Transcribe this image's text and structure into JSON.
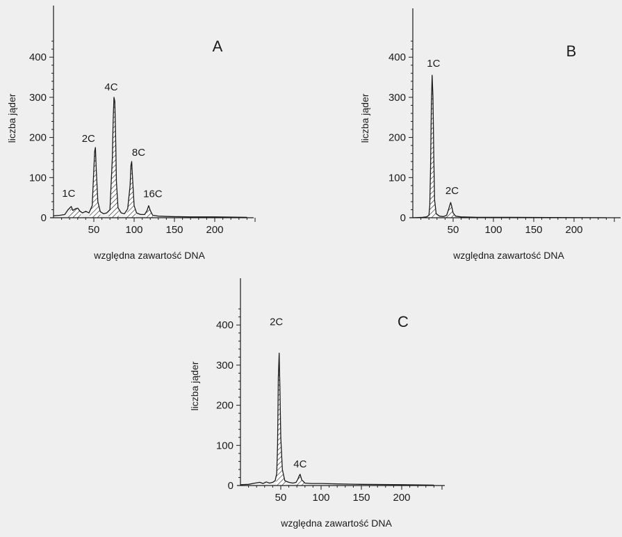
{
  "colors": {
    "background": "#efefef",
    "ink": "#1a1a1a",
    "hatch_fill": "#ffffff"
  },
  "chart_data": [
    {
      "type": "area",
      "panel_label": "A",
      "xlabel": "względna zawartość DNA",
      "ylabel": "liczba jąder",
      "xlim": [
        0,
        250
      ],
      "ylim": [
        0,
        450
      ],
      "x_ticks": [
        50,
        100,
        150,
        200
      ],
      "y_ticks": [
        0,
        100,
        200,
        300,
        400
      ],
      "grid": false,
      "histogram": [
        [
          0,
          5
        ],
        [
          8,
          6
        ],
        [
          14,
          8
        ],
        [
          18,
          20
        ],
        [
          22,
          28
        ],
        [
          24,
          18
        ],
        [
          27,
          22
        ],
        [
          30,
          24
        ],
        [
          33,
          16
        ],
        [
          36,
          12
        ],
        [
          40,
          16
        ],
        [
          44,
          12
        ],
        [
          48,
          30
        ],
        [
          50,
          120
        ],
        [
          51,
          165
        ],
        [
          52,
          175
        ],
        [
          53,
          120
        ],
        [
          55,
          40
        ],
        [
          58,
          15
        ],
        [
          62,
          10
        ],
        [
          66,
          12
        ],
        [
          70,
          20
        ],
        [
          73,
          150
        ],
        [
          74,
          240
        ],
        [
          75,
          300
        ],
        [
          76,
          290
        ],
        [
          77,
          210
        ],
        [
          78,
          90
        ],
        [
          80,
          25
        ],
        [
          84,
          12
        ],
        [
          88,
          10
        ],
        [
          92,
          22
        ],
        [
          95,
          80
        ],
        [
          96,
          130
        ],
        [
          97,
          140
        ],
        [
          98,
          100
        ],
        [
          100,
          30
        ],
        [
          103,
          12
        ],
        [
          108,
          8
        ],
        [
          113,
          8
        ],
        [
          116,
          18
        ],
        [
          118,
          30
        ],
        [
          120,
          18
        ],
        [
          123,
          6
        ],
        [
          130,
          4
        ],
        [
          145,
          3
        ],
        [
          170,
          2
        ],
        [
          200,
          2
        ],
        [
          240,
          1
        ]
      ],
      "shaded_peaks": [
        [
          44,
          58
        ],
        [
          68,
          81
        ],
        [
          91,
          102
        ],
        [
          114,
          123
        ],
        [
          18,
          34
        ]
      ],
      "peaks": [
        {
          "label": "1C",
          "x": 24,
          "y": 28
        },
        {
          "label": "2C",
          "x": 52,
          "y": 175
        },
        {
          "label": "4C",
          "x": 75,
          "y": 300
        },
        {
          "label": "8C",
          "x": 97,
          "y": 140
        },
        {
          "label": "16C",
          "x": 118,
          "y": 30
        }
      ]
    },
    {
      "type": "area",
      "panel_label": "B",
      "xlabel": "względna zawartość DNA",
      "ylabel": "liczba jąder",
      "xlim": [
        0,
        250
      ],
      "ylim": [
        0,
        450
      ],
      "x_ticks": [
        50,
        100,
        150,
        200
      ],
      "y_ticks": [
        0,
        100,
        200,
        300,
        400
      ],
      "grid": false,
      "histogram": [
        [
          0,
          0
        ],
        [
          12,
          1
        ],
        [
          17,
          2
        ],
        [
          20,
          6
        ],
        [
          21,
          30
        ],
        [
          22,
          120
        ],
        [
          23,
          280
        ],
        [
          24,
          355
        ],
        [
          25,
          300
        ],
        [
          26,
          150
        ],
        [
          27,
          45
        ],
        [
          29,
          10
        ],
        [
          33,
          4
        ],
        [
          38,
          3
        ],
        [
          42,
          6
        ],
        [
          44,
          18
        ],
        [
          46,
          32
        ],
        [
          47,
          38
        ],
        [
          48,
          30
        ],
        [
          50,
          12
        ],
        [
          53,
          4
        ],
        [
          60,
          2
        ],
        [
          80,
          1
        ],
        [
          120,
          1
        ],
        [
          240,
          0
        ]
      ],
      "shaded_peaks": [
        [
          19,
          29
        ],
        [
          41,
          52
        ]
      ],
      "peaks": [
        {
          "label": "1C",
          "x": 24,
          "y": 355
        },
        {
          "label": "2C",
          "x": 47,
          "y": 38
        }
      ]
    },
    {
      "type": "area",
      "panel_label": "C",
      "xlabel": "względna zawartość DNA",
      "ylabel": "liczba jąder",
      "xlim": [
        0,
        250
      ],
      "ylim": [
        0,
        450
      ],
      "x_ticks": [
        50,
        100,
        150,
        200
      ],
      "y_ticks": [
        0,
        100,
        200,
        300,
        400
      ],
      "grid": false,
      "histogram": [
        [
          0,
          2
        ],
        [
          10,
          3
        ],
        [
          18,
          6
        ],
        [
          24,
          8
        ],
        [
          28,
          5
        ],
        [
          32,
          9
        ],
        [
          36,
          6
        ],
        [
          40,
          8
        ],
        [
          43,
          12
        ],
        [
          45,
          30
        ],
        [
          46,
          100
        ],
        [
          47,
          270
        ],
        [
          48,
          330
        ],
        [
          49,
          240
        ],
        [
          50,
          120
        ],
        [
          52,
          40
        ],
        [
          55,
          12
        ],
        [
          60,
          8
        ],
        [
          65,
          6
        ],
        [
          69,
          8
        ],
        [
          71,
          15
        ],
        [
          73,
          25
        ],
        [
          74,
          28
        ],
        [
          76,
          14
        ],
        [
          80,
          6
        ],
        [
          88,
          5
        ],
        [
          100,
          5
        ],
        [
          120,
          4
        ],
        [
          150,
          3
        ],
        [
          200,
          2
        ],
        [
          240,
          1
        ]
      ],
      "shaded_peaks": [
        [
          44,
          56
        ],
        [
          69,
          80
        ]
      ],
      "peaks": [
        {
          "label": "2C",
          "x": 48,
          "y": 330
        },
        {
          "label": "4C",
          "x": 74,
          "y": 28
        }
      ]
    }
  ]
}
